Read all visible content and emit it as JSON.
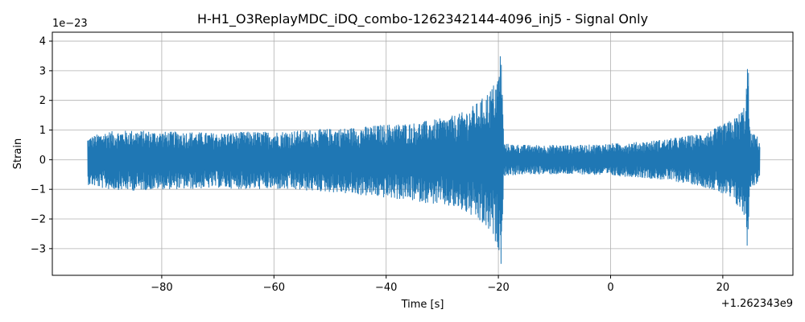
{
  "chart_data": {
    "type": "line",
    "title": "H-H1_O3ReplayMDC_iDQ_combo-1262342144-4096_inj5 - Signal Only",
    "xlabel": "Time [s]",
    "ylabel": "Strain",
    "x_offset_label": "+1.262343e9",
    "y_scale_label": "1e−23",
    "xlim": [
      -99.5,
      32.5
    ],
    "ylim": [
      -3.9,
      4.3
    ],
    "grid": true,
    "x_ticks": [
      -80,
      -60,
      -40,
      -20,
      0,
      20
    ],
    "x_tick_labels": [
      "−80",
      "−60",
      "−40",
      "−20",
      "0",
      "20"
    ],
    "y_ticks": [
      -3,
      -2,
      -1,
      0,
      1,
      2,
      3,
      4
    ],
    "y_tick_labels": [
      "−3",
      "−2",
      "−1",
      "0",
      "1",
      "2",
      "3",
      "4"
    ],
    "series_color": "#1f77b4",
    "series": [
      {
        "x": [
          -93.2,
          -90,
          -85,
          -80,
          -75,
          -70,
          -65,
          -60,
          -55,
          -50,
          -45,
          -40,
          -35,
          -30,
          -27,
          -25,
          -23,
          -21,
          -20,
          -19.7,
          -19.5,
          -19.3,
          -19,
          -15,
          -10,
          -5,
          0,
          5,
          10,
          15,
          18,
          20,
          22,
          23,
          24,
          24.5,
          24.8,
          25.2,
          26,
          26.6
        ],
        "upper": [
          0.75,
          0.95,
          1.0,
          0.95,
          0.95,
          0.9,
          0.95,
          0.95,
          1.0,
          1.05,
          1.1,
          1.2,
          1.25,
          1.4,
          1.55,
          1.75,
          2.05,
          2.5,
          2.9,
          3.6,
          3.98,
          2.4,
          0.55,
          0.5,
          0.5,
          0.5,
          0.55,
          0.6,
          0.7,
          0.85,
          1.0,
          1.2,
          1.4,
          1.6,
          1.9,
          3.6,
          1.0,
          0.9,
          0.85,
          0.6
        ],
        "lower": [
          -0.85,
          -1.0,
          -1.05,
          -1.0,
          -1.0,
          -0.95,
          -1.0,
          -1.0,
          -1.05,
          -1.1,
          -1.2,
          -1.3,
          -1.4,
          -1.55,
          -1.7,
          -1.9,
          -2.2,
          -2.6,
          -3.0,
          -3.3,
          -3.55,
          -2.5,
          -0.55,
          -0.5,
          -0.5,
          -0.5,
          -0.55,
          -0.6,
          -0.7,
          -0.85,
          -1.0,
          -1.2,
          -1.45,
          -1.7,
          -2.0,
          -3.35,
          -1.0,
          -0.9,
          -0.85,
          -0.6
        ]
      }
    ]
  }
}
